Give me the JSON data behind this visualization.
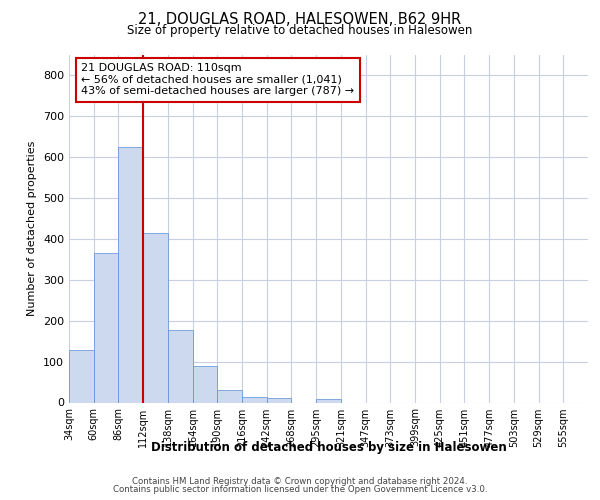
{
  "title1": "21, DOUGLAS ROAD, HALESOWEN, B62 9HR",
  "title2": "Size of property relative to detached houses in Halesowen",
  "xlabel": "Distribution of detached houses by size in Halesowen",
  "ylabel": "Number of detached properties",
  "bar_values": [
    128,
    365,
    625,
    415,
    178,
    90,
    31,
    14,
    10,
    0,
    9,
    0,
    0,
    0,
    0,
    0,
    0,
    0,
    0,
    0,
    0
  ],
  "bin_labels": [
    "34sqm",
    "60sqm",
    "86sqm",
    "112sqm",
    "138sqm",
    "164sqm",
    "190sqm",
    "216sqm",
    "242sqm",
    "268sqm",
    "295sqm",
    "321sqm",
    "347sqm",
    "373sqm",
    "399sqm",
    "425sqm",
    "451sqm",
    "477sqm",
    "503sqm",
    "529sqm",
    "555sqm"
  ],
  "bar_color": "#cdd9ef",
  "bar_edge_color": "#5b8dd9",
  "background_color": "#ffffff",
  "grid_color": "#c8d0e0",
  "vline_color": "#cc0000",
  "annotation_text": "21 DOUGLAS ROAD: 110sqm\n← 56% of detached houses are smaller (1,041)\n43% of semi-detached houses are larger (787) →",
  "annotation_box_color": "#ffffff",
  "annotation_box_edge": "#cc0000",
  "ylim": [
    0,
    850
  ],
  "yticks": [
    0,
    100,
    200,
    300,
    400,
    500,
    600,
    700,
    800
  ],
  "footer1": "Contains HM Land Registry data © Crown copyright and database right 2024.",
  "footer2": "Contains public sector information licensed under the Open Government Licence v3.0."
}
